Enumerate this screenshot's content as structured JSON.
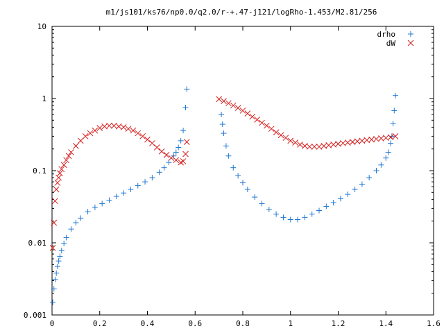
{
  "chart_data": {
    "type": "scatter",
    "title": "m1/js101/ks76/np0.0/q2.0/r-+.47-j121/logRho-1.453/M2.81/256",
    "xlabel": "",
    "ylabel": "",
    "xlim": [
      0,
      1.6
    ],
    "ylim": [
      0.001,
      10
    ],
    "y_scale": "log",
    "grid": false,
    "legend_position": "top-right",
    "x_ticks": [
      {
        "value": 0,
        "label": "0"
      },
      {
        "value": 0.2,
        "label": "0.2"
      },
      {
        "value": 0.4,
        "label": "0.4"
      },
      {
        "value": 0.6,
        "label": "0.6"
      },
      {
        "value": 0.8,
        "label": "0.8"
      },
      {
        "value": 1.0,
        "label": "1"
      },
      {
        "value": 1.2,
        "label": "1.2"
      },
      {
        "value": 1.4,
        "label": "1.4"
      },
      {
        "value": 1.6,
        "label": "1.6"
      }
    ],
    "y_ticks": [
      {
        "value": 0.001,
        "label": "0.001"
      },
      {
        "value": 0.01,
        "label": "0.01"
      },
      {
        "value": 0.1,
        "label": "0.1"
      },
      {
        "value": 1,
        "label": "1"
      },
      {
        "value": 10,
        "label": "10"
      }
    ],
    "series": [
      {
        "name": "drho",
        "marker": "plus",
        "color": "#1f77d4",
        "x": [
          0.003,
          0.008,
          0.013,
          0.018,
          0.023,
          0.028,
          0.033,
          0.04,
          0.05,
          0.06,
          0.08,
          0.1,
          0.12,
          0.15,
          0.18,
          0.21,
          0.24,
          0.27,
          0.3,
          0.33,
          0.36,
          0.39,
          0.42,
          0.45,
          0.47,
          0.49,
          0.51,
          0.52,
          0.53,
          0.54,
          0.55,
          0.56,
          0.565,
          0.71,
          0.715,
          0.72,
          0.73,
          0.74,
          0.76,
          0.78,
          0.8,
          0.82,
          0.85,
          0.88,
          0.91,
          0.94,
          0.97,
          1.0,
          1.03,
          1.06,
          1.09,
          1.12,
          1.15,
          1.18,
          1.21,
          1.24,
          1.27,
          1.3,
          1.33,
          1.36,
          1.38,
          1.4,
          1.41,
          1.42,
          1.425,
          1.43,
          1.435,
          1.44
        ],
        "y": [
          0.0015,
          0.0023,
          0.0031,
          0.0038,
          0.0047,
          0.0056,
          0.0065,
          0.0078,
          0.0098,
          0.0118,
          0.0155,
          0.019,
          0.022,
          0.027,
          0.031,
          0.035,
          0.039,
          0.044,
          0.049,
          0.055,
          0.062,
          0.07,
          0.08,
          0.095,
          0.11,
          0.13,
          0.16,
          0.18,
          0.21,
          0.26,
          0.36,
          0.75,
          1.35,
          0.6,
          0.44,
          0.33,
          0.22,
          0.16,
          0.11,
          0.085,
          0.068,
          0.055,
          0.043,
          0.035,
          0.029,
          0.025,
          0.0225,
          0.021,
          0.021,
          0.0225,
          0.025,
          0.028,
          0.032,
          0.036,
          0.041,
          0.047,
          0.055,
          0.065,
          0.08,
          0.1,
          0.12,
          0.15,
          0.18,
          0.24,
          0.3,
          0.45,
          0.68,
          1.1
        ]
      },
      {
        "name": "dW",
        "marker": "cross",
        "color": "#d61a1a",
        "x": [
          0.003,
          0.008,
          0.013,
          0.018,
          0.023,
          0.028,
          0.033,
          0.04,
          0.05,
          0.06,
          0.07,
          0.08,
          0.1,
          0.12,
          0.14,
          0.16,
          0.18,
          0.2,
          0.22,
          0.24,
          0.26,
          0.28,
          0.3,
          0.32,
          0.34,
          0.36,
          0.38,
          0.4,
          0.42,
          0.44,
          0.46,
          0.48,
          0.5,
          0.52,
          0.54,
          0.55,
          0.56,
          0.565,
          0.7,
          0.72,
          0.74,
          0.76,
          0.78,
          0.8,
          0.82,
          0.84,
          0.86,
          0.88,
          0.9,
          0.92,
          0.94,
          0.96,
          0.98,
          1.0,
          1.02,
          1.04,
          1.06,
          1.08,
          1.1,
          1.12,
          1.14,
          1.16,
          1.18,
          1.2,
          1.22,
          1.24,
          1.26,
          1.28,
          1.3,
          1.32,
          1.34,
          1.36,
          1.38,
          1.4,
          1.42,
          1.44
        ],
        "y": [
          0.0085,
          0.019,
          0.038,
          0.055,
          0.068,
          0.08,
          0.092,
          0.105,
          0.12,
          0.14,
          0.16,
          0.18,
          0.22,
          0.26,
          0.3,
          0.33,
          0.36,
          0.39,
          0.41,
          0.42,
          0.42,
          0.41,
          0.4,
          0.38,
          0.36,
          0.33,
          0.3,
          0.27,
          0.24,
          0.21,
          0.185,
          0.165,
          0.15,
          0.14,
          0.13,
          0.135,
          0.17,
          0.25,
          0.98,
          0.92,
          0.86,
          0.8,
          0.74,
          0.68,
          0.62,
          0.56,
          0.51,
          0.46,
          0.42,
          0.38,
          0.34,
          0.31,
          0.285,
          0.26,
          0.245,
          0.23,
          0.22,
          0.215,
          0.215,
          0.215,
          0.22,
          0.225,
          0.23,
          0.235,
          0.24,
          0.245,
          0.25,
          0.255,
          0.26,
          0.265,
          0.27,
          0.275,
          0.28,
          0.285,
          0.29,
          0.3
        ]
      }
    ]
  }
}
